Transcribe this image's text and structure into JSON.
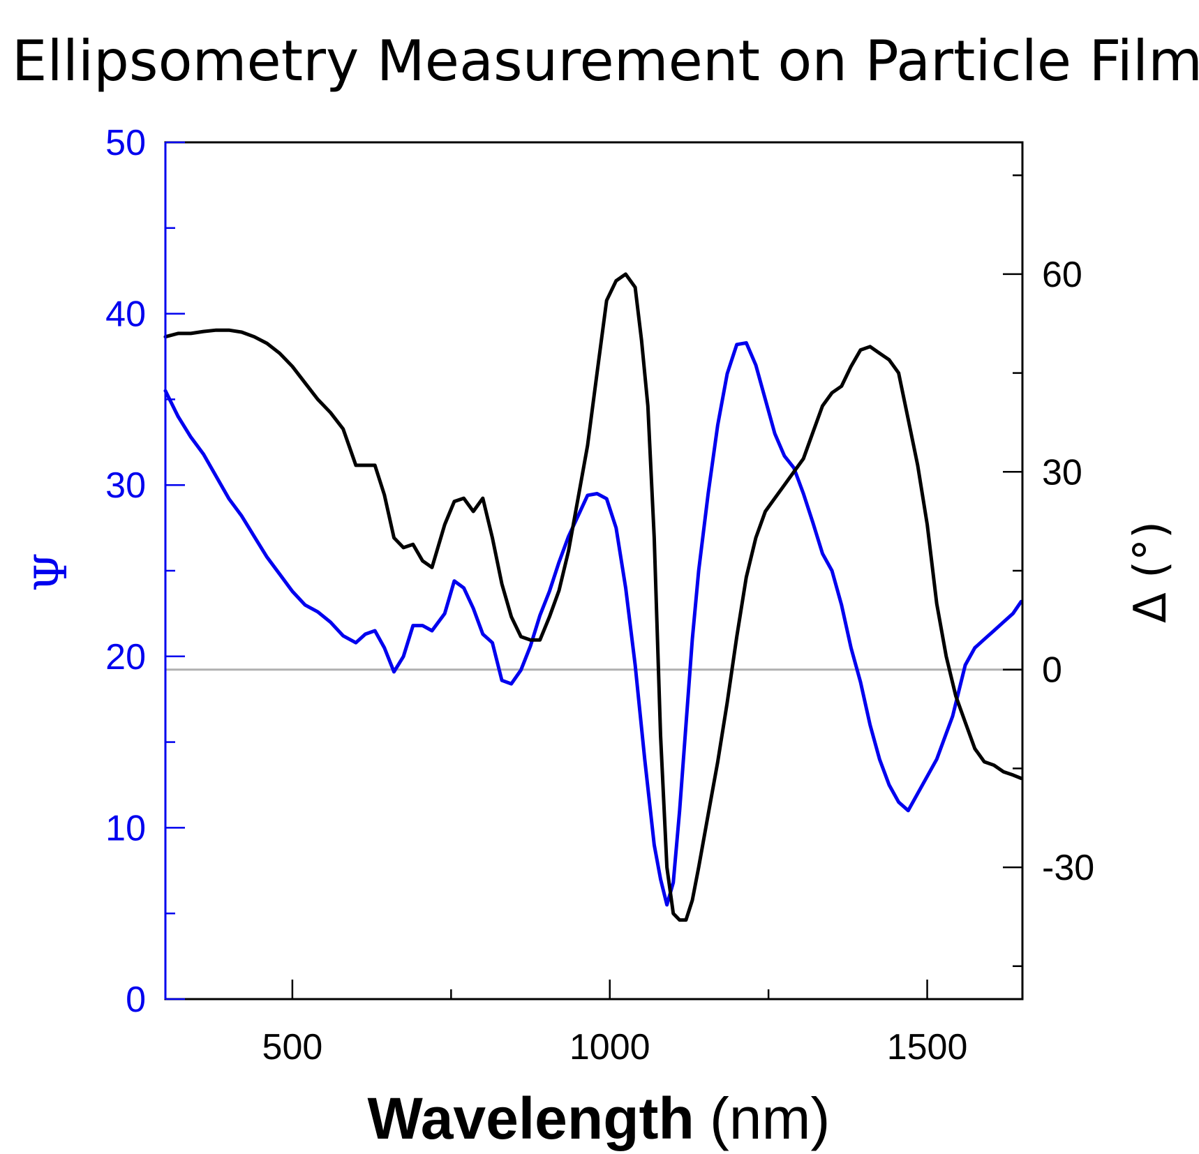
{
  "chart_data": {
    "type": "line",
    "title": "Ellipsometry Measurement on Particle Film",
    "xlabel_bold": "Wavelength",
    "xlabel_unit": "(nm)",
    "ylabel_left": "Ψ",
    "ylabel_right": "Δ (°)",
    "xlim": [
      300,
      1650
    ],
    "xticks": [
      500,
      1000,
      1500
    ],
    "xtick_labels": [
      "500",
      "1000",
      "1500"
    ],
    "ylim_left": [
      0,
      50
    ],
    "yticks_left": [
      0,
      10,
      20,
      30,
      40,
      50
    ],
    "ytick_labels_left": [
      "0",
      "10",
      "20",
      "30",
      "40",
      "50"
    ],
    "ylim_right": [
      -50,
      80
    ],
    "yticks_right": [
      -30,
      0,
      30,
      60
    ],
    "ytick_labels_right": [
      "-30",
      "0",
      "30",
      "60"
    ],
    "reference_line": {
      "axis": "right",
      "value": 0,
      "color": "#b0b0b0"
    },
    "grid": false,
    "series": [
      {
        "axis": "left",
        "color": "#0000ee",
        "x": [
          300,
          320,
          340,
          360,
          380,
          400,
          420,
          440,
          460,
          480,
          500,
          520,
          540,
          560,
          580,
          600,
          615,
          630,
          645,
          660,
          675,
          690,
          705,
          720,
          740,
          755,
          770,
          785,
          800,
          815,
          830,
          845,
          860,
          875,
          890,
          905,
          920,
          935,
          950,
          965,
          980,
          995,
          1010,
          1025,
          1040,
          1055,
          1070,
          1080,
          1090,
          1100,
          1110,
          1120,
          1130,
          1140,
          1155,
          1170,
          1185,
          1200,
          1215,
          1230,
          1245,
          1260,
          1275,
          1290,
          1305,
          1320,
          1335,
          1350,
          1365,
          1380,
          1395,
          1410,
          1425,
          1440,
          1455,
          1470,
          1485,
          1500,
          1515,
          1530,
          1540,
          1550,
          1560,
          1575,
          1590,
          1605,
          1620,
          1635,
          1648
        ],
        "y": [
          35.5,
          34,
          32.8,
          31.8,
          30.5,
          29.2,
          28.2,
          27,
          25.8,
          24.8,
          23.8,
          23,
          22.6,
          22,
          21.2,
          20.8,
          21.3,
          21.5,
          20.5,
          19.1,
          20,
          21.8,
          21.8,
          21.5,
          22.5,
          24.4,
          24,
          22.8,
          21.3,
          20.8,
          18.6,
          18.4,
          19.2,
          20.6,
          22.4,
          23.8,
          25.5,
          27,
          28.2,
          29.4,
          29.5,
          29.2,
          27.5,
          24,
          19.5,
          14,
          9,
          7,
          5.5,
          6.8,
          11,
          16,
          21,
          25,
          29.5,
          33.5,
          36.5,
          38.2,
          38.3,
          37,
          35,
          33,
          31.7,
          31,
          29.5,
          27.8,
          26,
          25,
          23,
          20.5,
          18.5,
          16,
          14,
          12.5,
          11.5,
          11,
          12,
          13,
          14,
          15.5,
          16.5,
          18,
          19.5,
          20.5,
          21,
          21.5,
          22,
          22.5,
          23.2
        ]
      },
      {
        "axis": "right",
        "color": "#000000",
        "x": [
          300,
          320,
          340,
          360,
          380,
          400,
          420,
          440,
          460,
          480,
          500,
          520,
          540,
          560,
          580,
          600,
          615,
          630,
          645,
          660,
          675,
          690,
          705,
          720,
          740,
          755,
          770,
          785,
          800,
          815,
          830,
          845,
          860,
          875,
          890,
          905,
          920,
          935,
          950,
          965,
          980,
          995,
          1010,
          1025,
          1040,
          1050,
          1060,
          1070,
          1080,
          1090,
          1100,
          1110,
          1120,
          1130,
          1140,
          1155,
          1170,
          1185,
          1200,
          1215,
          1230,
          1245,
          1260,
          1275,
          1290,
          1305,
          1320,
          1335,
          1350,
          1365,
          1380,
          1395,
          1410,
          1425,
          1440,
          1455,
          1470,
          1485,
          1500,
          1515,
          1530,
          1545,
          1560,
          1575,
          1590,
          1605,
          1620,
          1635,
          1648
        ],
        "y": [
          50.5,
          51,
          51,
          51.3,
          51.5,
          51.5,
          51.2,
          50.5,
          49.5,
          48,
          46,
          43.5,
          41,
          39,
          36.5,
          31,
          31,
          31,
          26.5,
          20,
          18.5,
          19,
          16.5,
          15.5,
          22,
          25.5,
          26,
          24,
          26,
          20,
          13,
          8,
          5,
          4.5,
          4.5,
          8,
          12,
          18,
          26,
          34,
          45,
          56,
          59,
          60,
          58,
          50,
          40,
          20,
          -10,
          -30,
          -37,
          -38,
          -38,
          -35,
          -30,
          -22,
          -14,
          -5,
          5,
          14,
          20,
          24,
          26,
          28,
          30,
          32,
          36,
          40,
          42,
          43,
          46,
          48.5,
          49,
          48,
          47,
          45,
          38,
          31,
          22,
          10,
          2,
          -4,
          -8,
          -12,
          -14,
          -14.5,
          -15.5,
          -16,
          -16.5
        ]
      }
    ]
  }
}
